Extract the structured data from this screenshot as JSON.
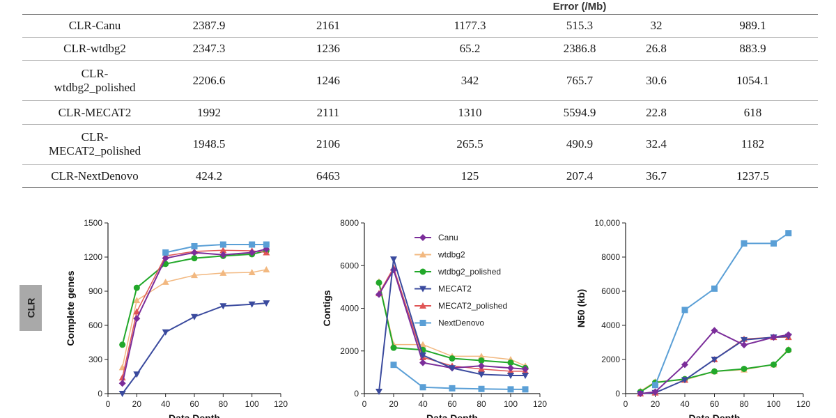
{
  "table": {
    "header": [
      "",
      "",
      "",
      "Error (/Mb)",
      "",
      ""
    ],
    "rows": [
      [
        "CLR-Canu",
        "2387.9",
        "2161",
        "1177.3",
        "515.3",
        "32",
        "989.1"
      ],
      [
        "CLR-wtdbg2",
        "2347.3",
        "1236",
        "65.2",
        "2386.8",
        "26.8",
        "883.9"
      ],
      [
        "CLR-\nwtdbg2_polished",
        "2206.6",
        "1246",
        "342",
        "765.7",
        "30.6",
        "1054.1"
      ],
      [
        "CLR-MECAT2",
        "1992",
        "2111",
        "1310",
        "5594.9",
        "22.8",
        "618"
      ],
      [
        "CLR-\nMECAT2_polished",
        "1948.5",
        "2106",
        "265.5",
        "490.9",
        "32.4",
        "1182"
      ],
      [
        "CLR-NextDenovo",
        "424.2",
        "6463",
        "125",
        "207.4",
        "36.7",
        "1237.5"
      ]
    ]
  },
  "side_label": "CLR",
  "colors": {
    "Canu": "#7b2d9a",
    "wtdbg2": "#f2b880",
    "wtdbg2_polished": "#22a82a",
    "MECAT2": "#3a4a9e",
    "MECAT2_polished": "#e05555",
    "NextDenovo": "#5a9fd6"
  },
  "chart_data": [
    {
      "type": "line",
      "ylabel": "Complete genes",
      "xlabel": "Data Depth",
      "xlim": [
        0,
        120
      ],
      "ylim": [
        0,
        1500
      ],
      "xticks": [
        0,
        20,
        40,
        60,
        80,
        100,
        120
      ],
      "yticks": [
        0,
        300,
        600,
        900,
        1200,
        1500
      ],
      "ytick_labels": [
        "0",
        "300",
        "600",
        "900",
        "1200",
        "1500"
      ],
      "x": [
        10,
        20,
        40,
        60,
        80,
        100,
        110
      ],
      "series": [
        {
          "name": "wtdbg2",
          "values": [
            230,
            820,
            980,
            1040,
            1060,
            1065,
            1090
          ]
        },
        {
          "name": "MECAT2",
          "values": [
            0,
            170,
            540,
            675,
            770,
            785,
            795
          ]
        },
        {
          "name": "wtdbg2_polished",
          "values": [
            430,
            930,
            1140,
            1190,
            1210,
            1225,
            1255
          ]
        },
        {
          "name": "MECAT2_polished",
          "values": [
            140,
            720,
            1210,
            1250,
            1260,
            1255,
            1240
          ]
        },
        {
          "name": "Canu",
          "values": [
            90,
            660,
            1190,
            1240,
            1220,
            1240,
            1270
          ]
        },
        {
          "name": "NextDenovo",
          "values": [
            null,
            null,
            1240,
            1295,
            1310,
            1310,
            1310
          ]
        }
      ]
    },
    {
      "type": "line",
      "ylabel": "Contigs",
      "xlabel": "Data Depth",
      "xlim": [
        0,
        120
      ],
      "ylim": [
        0,
        8000
      ],
      "xticks": [
        0,
        20,
        40,
        60,
        80,
        100,
        120
      ],
      "yticks": [
        0,
        2000,
        4000,
        6000,
        8000
      ],
      "ytick_labels": [
        "0",
        "2000",
        "4000",
        "6000",
        "8000"
      ],
      "x": [
        10,
        20,
        40,
        60,
        80,
        100,
        110
      ],
      "legend": [
        "Canu",
        "wtdbg2",
        "wtdbg2_polished",
        "MECAT2",
        "MECAT2_polished",
        "NextDenovo"
      ],
      "series": [
        {
          "name": "wtdbg2",
          "values": [
            5250,
            2300,
            2300,
            1750,
            1750,
            1600,
            1300
          ]
        },
        {
          "name": "wtdbg2_polished",
          "values": [
            5200,
            2150,
            2050,
            1650,
            1550,
            1450,
            1200
          ]
        },
        {
          "name": "MECAT2_polished",
          "values": [
            4700,
            5900,
            1700,
            1300,
            1150,
            1050,
            1050
          ]
        },
        {
          "name": "Canu",
          "values": [
            4650,
            5800,
            1450,
            1200,
            1300,
            1200,
            1150
          ]
        },
        {
          "name": "MECAT2",
          "values": [
            100,
            6300,
            1800,
            1200,
            900,
            850,
            850
          ]
        },
        {
          "name": "NextDenovo",
          "values": [
            null,
            1350,
            300,
            250,
            220,
            200,
            200
          ]
        }
      ]
    },
    {
      "type": "line",
      "ylabel": "N50 (kb)",
      "xlabel": "Data Depth",
      "xlim": [
        0,
        120
      ],
      "ylim": [
        0,
        10000
      ],
      "xticks": [
        0,
        20,
        40,
        60,
        80,
        100,
        120
      ],
      "yticks": [
        0,
        2000,
        4000,
        6000,
        8000,
        10000
      ],
      "ytick_labels": [
        "0",
        "2000",
        "4000",
        "6000",
        "8000",
        "10,000"
      ],
      "x": [
        10,
        20,
        40,
        60,
        80,
        100,
        110
      ],
      "series": [
        {
          "name": "wtdbg2",
          "values": [
            150,
            700,
            800,
            1300,
            1400,
            1700,
            2600
          ]
        },
        {
          "name": "wtdbg2_polished",
          "values": [
            100,
            650,
            850,
            1300,
            1450,
            1700,
            2550
          ]
        },
        {
          "name": "MECAT2_polished",
          "values": [
            0,
            50,
            800,
            2000,
            3200,
            3300,
            3300
          ]
        },
        {
          "name": "MECAT2",
          "values": [
            0,
            50,
            800,
            2000,
            3150,
            3300,
            3350
          ]
        },
        {
          "name": "Canu",
          "values": [
            0,
            100,
            1700,
            3700,
            2850,
            3300,
            3450
          ]
        },
        {
          "name": "NextDenovo",
          "values": [
            null,
            500,
            4900,
            6150,
            8800,
            8800,
            9400
          ]
        }
      ]
    }
  ]
}
